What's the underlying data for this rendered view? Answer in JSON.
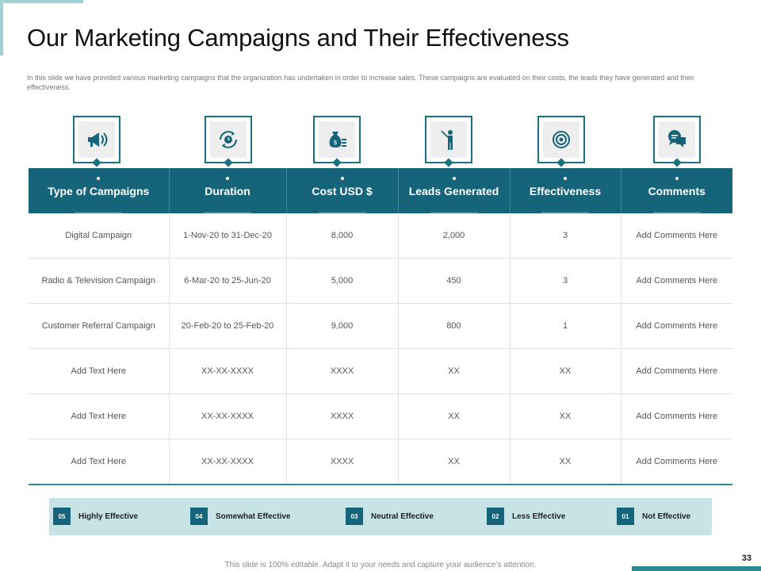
{
  "slide": {
    "title": "Our Marketing Campaigns and Their Effectiveness",
    "subtitle": "In this slide we have provided various marketing campaigns that the organization has undertaken in order to increase sales. These campaigns are evaluated on their costs, the leads they have generated and their effectiveness.",
    "footer_note": "This slide is 100% editable. Adapt it to your needs and capture your audience’s attention.",
    "page_number": "33"
  },
  "colors": {
    "accent": "#16647a",
    "accent_light": "#c7e3e5",
    "icon_border": "#1a6f80"
  },
  "table": {
    "headers": [
      {
        "label": "Type of Campaigns",
        "icon": "megaphone-icon"
      },
      {
        "label": "Duration",
        "icon": "clock-refresh-icon"
      },
      {
        "label": "Cost USD $",
        "icon": "money-bag-icon"
      },
      {
        "label": "Leads Generated",
        "icon": "presenter-icon"
      },
      {
        "label": "Effectiveness",
        "icon": "target-icon"
      },
      {
        "label": "Comments",
        "icon": "chat-bubbles-icon"
      }
    ],
    "rows": [
      [
        "Digital  Campaign",
        "1-Nov-20 to 31-Dec-20",
        "8,000",
        "2,000",
        "3",
        "Add Comments Here"
      ],
      [
        "Radio & Television  Campaign",
        "6-Mar-20 to 25-Jun-20",
        "5,000",
        "450",
        "3",
        "Add Comments Here"
      ],
      [
        "Customer Referral Campaign",
        "20-Feb-20 to 25-Feb-20",
        "9,000",
        "800",
        "1",
        "Add Comments Here"
      ],
      [
        "Add Text Here",
        "XX-XX-XXXX",
        "XXXX",
        "XX",
        "XX",
        "Add Comments Here"
      ],
      [
        "Add Text Here",
        "XX-XX-XXXX",
        "XXXX",
        "XX",
        "XX",
        "Add Comments Here"
      ],
      [
        "Add Text Here",
        "XX-XX-XXXX",
        "XXXX",
        "XX",
        "XX",
        "Add Comments Here"
      ]
    ]
  },
  "legend": [
    {
      "num": "05",
      "label": "Highly Effective"
    },
    {
      "num": "04",
      "label": "Somewhat Effective"
    },
    {
      "num": "03",
      "label": "Neutral Effective"
    },
    {
      "num": "02",
      "label": "Less Effective"
    },
    {
      "num": "01",
      "label": "Not Effective"
    }
  ]
}
